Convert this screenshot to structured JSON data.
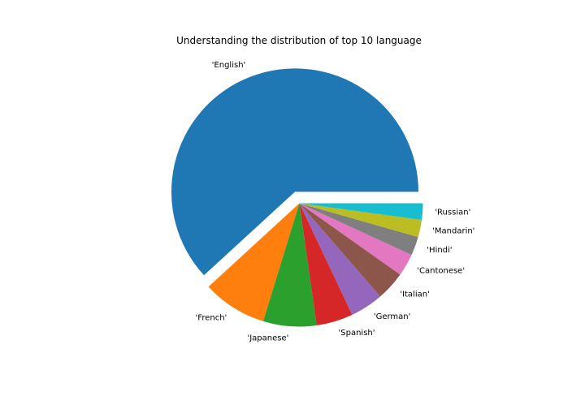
{
  "chart_data": {
    "type": "pie",
    "title": "Understanding the distribution of top 10 language",
    "categories": [
      "'English'",
      "'French'",
      "'Japanese'",
      "'Spanish'",
      "'German'",
      "'Italian'",
      "'Cantonese'",
      "'Hindi'",
      "'Mandarin'",
      "'Russian'"
    ],
    "values": [
      63.0,
      8.6,
      7.1,
      4.9,
      4.4,
      3.9,
      3.0,
      2.5,
      2.3,
      2.2
    ],
    "colors": [
      "#1f77b4",
      "#ff7f0e",
      "#2ca02c",
      "#d62728",
      "#9467bd",
      "#8c564b",
      "#e377c2",
      "#7f7f7f",
      "#bcbd22",
      "#17becf"
    ],
    "explode": [
      0.1,
      0,
      0,
      0,
      0,
      0,
      0,
      0,
      0,
      0
    ],
    "start_angle_deg": 0,
    "direction": "counterclockwise",
    "legend": "none",
    "grid": false
  }
}
